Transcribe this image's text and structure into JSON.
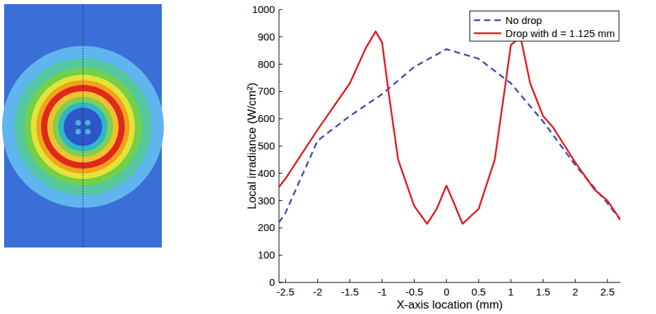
{
  "chart_data": {
    "type": "line",
    "x_label": "X-axis location (mm)",
    "y_label": "Local irradiance (W/cm²)",
    "xlim": [
      -2.6,
      2.7
    ],
    "ylim": [
      0,
      1000
    ],
    "xticks": [
      -2.5,
      -2,
      -1.5,
      -1,
      -0.5,
      0,
      0.5,
      1,
      1.5,
      2,
      2.5
    ],
    "yticks": [
      0,
      100,
      200,
      300,
      400,
      500,
      600,
      700,
      800,
      900,
      1000
    ],
    "legend": "upper right",
    "series": [
      {
        "name": "No drop",
        "color": "#3b4fb5",
        "line_style": "dashed",
        "x": [
          -2.6,
          -2.5,
          -2,
          -1.5,
          -1,
          -0.5,
          0,
          0.5,
          1,
          1.5,
          2,
          2.5,
          2.7
        ],
        "values": [
          220,
          255,
          520,
          610,
          690,
          790,
          855,
          820,
          730,
          590,
          430,
          290,
          230
        ]
      },
      {
        "name": "Drop with d = 1.125 mm",
        "color": "#e3191c",
        "line_style": "solid",
        "x": [
          -2.6,
          -2.5,
          -2,
          -1.5,
          -1.25,
          -1.1,
          -1,
          -0.9,
          -0.75,
          -0.5,
          -0.3,
          -0.15,
          0,
          0.1,
          0.25,
          0.5,
          0.75,
          0.9,
          1,
          1.15,
          1.3,
          1.5,
          1.65,
          2,
          2.3,
          2.5,
          2.7
        ],
        "values": [
          350,
          380,
          560,
          730,
          860,
          920,
          880,
          700,
          450,
          280,
          215,
          270,
          355,
          300,
          215,
          270,
          450,
          700,
          870,
          900,
          730,
          610,
          570,
          440,
          340,
          300,
          230
        ]
      }
    ]
  }
}
